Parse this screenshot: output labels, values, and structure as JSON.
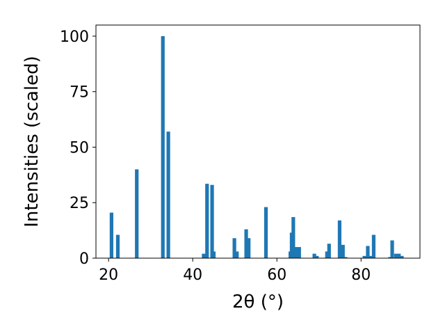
{
  "chart_data": {
    "type": "bar",
    "xlabel": "2θ (°)",
    "ylabel": "Intensities (scaled)",
    "xlim": [
      17,
      94
    ],
    "ylim": [
      0,
      105
    ],
    "xticks": [
      20,
      40,
      60,
      80
    ],
    "yticks": [
      0,
      25,
      50,
      75,
      100
    ],
    "bar_color": "#1f77b4",
    "grid": false,
    "series": [
      {
        "x": [
          20.7,
          22.2,
          26.7,
          32.9,
          34.2,
          42.6,
          43.4,
          44.6,
          45.0,
          49.9,
          50.5,
          52.7,
          53.3,
          57.4,
          63.2,
          63.5,
          63.9,
          64.5,
          65.3,
          68.9,
          69.5,
          71.9,
          72.4,
          74.9,
          75.7,
          76.3,
          80.8,
          81.6,
          82.3,
          83.0,
          86.9,
          87.4,
          88.3,
          89.0,
          89.7
        ],
        "values": [
          20.5,
          10.5,
          40,
          100,
          57,
          2,
          33.5,
          33,
          3,
          9,
          3,
          13,
          9,
          23,
          3,
          11.5,
          18.5,
          5,
          5,
          2,
          1,
          3,
          6.5,
          17,
          6,
          0.5,
          1,
          5.5,
          1,
          10.5,
          0.5,
          8,
          2,
          2,
          1
        ]
      }
    ]
  }
}
